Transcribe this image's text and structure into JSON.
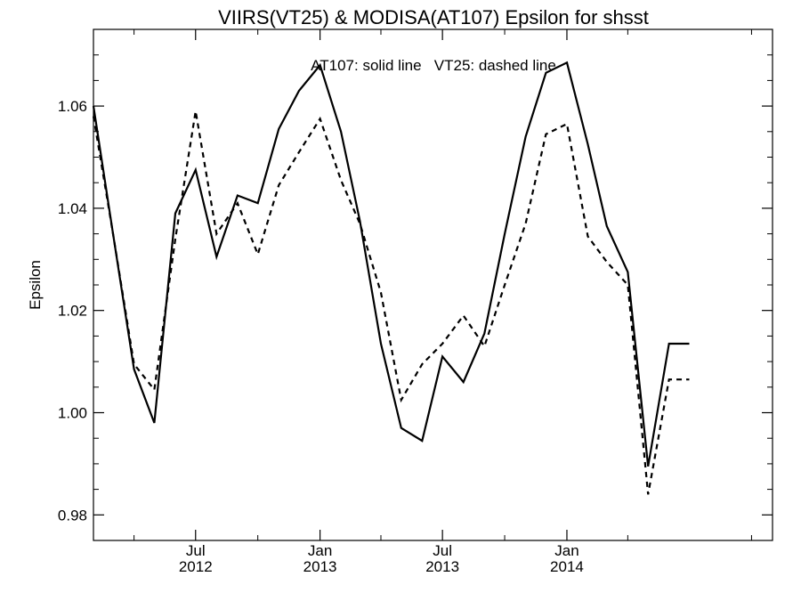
{
  "chart_data": {
    "type": "line",
    "title": "VIIRS(VT25) & MODISA(AT107)  Epsilon for shsst",
    "annotation": "AT107: solid line   VT25: dashed line",
    "xlabel": "",
    "ylabel": "Epsilon",
    "ylim": [
      0.975,
      1.075
    ],
    "xlim": [
      "2012-02-01",
      "2014-11-01"
    ],
    "yticks": [
      0.98,
      1.0,
      1.02,
      1.04,
      1.06
    ],
    "ytick_labels": [
      "0.98",
      "1.00",
      "1.02",
      "1.04",
      "1.06"
    ],
    "xticks_major": [
      {
        "date": "2012-07-01",
        "month": "Jul",
        "year": "2012"
      },
      {
        "date": "2013-01-01",
        "month": "Jan",
        "year": "2013"
      },
      {
        "date": "2013-07-01",
        "month": "Jul",
        "year": "2013"
      },
      {
        "date": "2014-01-01",
        "month": "Jan",
        "year": "2014"
      }
    ],
    "xticks_minor": [
      "2012-04-01",
      "2012-10-01",
      "2013-04-01",
      "2013-10-01",
      "2014-04-01",
      "2014-10-01"
    ],
    "grid": false,
    "series": [
      {
        "name": "AT107",
        "style": "solid",
        "color": "#000000",
        "x": [
          "2012-02-01",
          "2012-03-01",
          "2012-04-01",
          "2012-05-01",
          "2012-06-01",
          "2012-07-01",
          "2012-08-01",
          "2012-09-01",
          "2012-10-01",
          "2012-11-01",
          "2012-12-01",
          "2013-01-01",
          "2013-02-01",
          "2013-03-01",
          "2013-04-01",
          "2013-05-01",
          "2013-06-01",
          "2013-07-01",
          "2013-08-01",
          "2013-09-01",
          "2013-10-01",
          "2013-11-01",
          "2013-12-01",
          "2014-01-01",
          "2014-02-01",
          "2014-03-01",
          "2014-04-01",
          "2014-05-01",
          "2014-06-01",
          "2014-07-01"
        ],
        "values": [
          1.06,
          1.035,
          1.0085,
          0.998,
          1.039,
          1.0475,
          1.0305,
          1.0425,
          1.041,
          1.0555,
          1.063,
          1.068,
          1.055,
          1.0375,
          1.0135,
          0.997,
          0.9945,
          1.011,
          1.006,
          1.0155,
          1.035,
          1.054,
          1.0665,
          1.0685,
          1.0525,
          1.0365,
          1.0275,
          0.9895,
          1.0135,
          1.0135
        ]
      },
      {
        "name": "VT25",
        "style": "dashed",
        "color": "#000000",
        "x": [
          "2012-02-01",
          "2012-03-01",
          "2012-04-01",
          "2012-05-01",
          "2012-06-01",
          "2012-07-01",
          "2012-08-01",
          "2012-09-01",
          "2012-10-01",
          "2012-11-01",
          "2012-12-01",
          "2013-01-01",
          "2013-02-01",
          "2013-03-01",
          "2013-04-01",
          "2013-05-01",
          "2013-06-01",
          "2013-07-01",
          "2013-08-01",
          "2013-09-01",
          "2013-10-01",
          "2013-11-01",
          "2013-12-01",
          "2014-01-01",
          "2014-02-01",
          "2014-03-01",
          "2014-04-01",
          "2014-05-01",
          "2014-06-01",
          "2014-07-01"
        ],
        "values": [
          1.058,
          1.035,
          1.0095,
          1.0045,
          1.034,
          1.059,
          1.035,
          1.041,
          1.031,
          1.0445,
          1.051,
          1.0575,
          1.0455,
          1.037,
          1.0235,
          1.0025,
          1.0095,
          1.0135,
          1.019,
          1.013,
          1.025,
          1.037,
          1.0545,
          1.0565,
          1.0345,
          1.0295,
          1.025,
          0.984,
          1.0065,
          1.0065
        ]
      }
    ]
  }
}
